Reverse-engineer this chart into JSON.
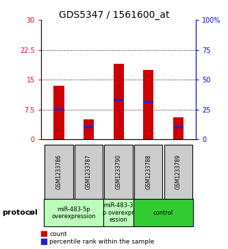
{
  "title": "GDS5347 / 1561600_at",
  "samples": [
    "GSM1233786",
    "GSM1233787",
    "GSM1233790",
    "GSM1233788",
    "GSM1233789"
  ],
  "counts": [
    13.5,
    5.0,
    19.0,
    17.5,
    5.5
  ],
  "percentile_values": [
    7.5,
    3.0,
    10.0,
    9.5,
    3.0
  ],
  "ylim_left": [
    0,
    30
  ],
  "ylim_right": [
    0,
    100
  ],
  "yticks_left": [
    0,
    7.5,
    15,
    22.5,
    30
  ],
  "ytick_labels_left": [
    "0",
    "7.5",
    "15",
    "22.5",
    "30"
  ],
  "yticks_right": [
    0,
    25,
    50,
    75,
    100
  ],
  "ytick_labels_right": [
    "0",
    "25",
    "50",
    "75",
    "100%"
  ],
  "bar_color": "#cc0000",
  "percentile_color": "#2222cc",
  "group_light_color": "#bbffbb",
  "group_dark_color": "#33cc33",
  "sample_box_color": "#cccccc",
  "groups": [
    {
      "label": "miR-483-5p\noverexpression",
      "indices": [
        0,
        1
      ],
      "color": "#bbffbb"
    },
    {
      "label": "miR-483-3\np overexpr\nession",
      "indices": [
        2
      ],
      "color": "#bbffbb"
    },
    {
      "label": "control",
      "indices": [
        3,
        4
      ],
      "color": "#33cc33"
    }
  ],
  "protocol_label": "protocol",
  "legend_count_label": "count",
  "legend_percentile_label": "percentile rank within the sample",
  "bar_width": 0.35,
  "title_fontsize": 10,
  "tick_fontsize": 7,
  "sample_fontsize": 5.5,
  "proto_fontsize": 6,
  "legend_fontsize": 6.5
}
